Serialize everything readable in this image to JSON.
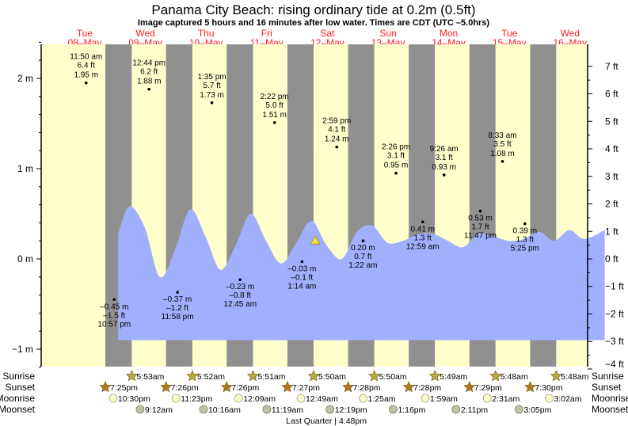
{
  "chart_data": {
    "type": "area",
    "title": "Panama City Beach: rising  ordinary tide at 0.2m (0.5ft)",
    "subtitle": "Image captured 5 hours and 16 minutes after low water. Times are CDT (UTC –5.0hrs)",
    "days": [
      {
        "dow": "Tue",
        "date": "08–May"
      },
      {
        "dow": "Wed",
        "date": "09–May"
      },
      {
        "dow": "Thu",
        "date": "10–May"
      },
      {
        "dow": "Fri",
        "date": "11–May"
      },
      {
        "dow": "Sat",
        "date": "12–May"
      },
      {
        "dow": "Sun",
        "date": "13–May"
      },
      {
        "dow": "Mon",
        "date": "14–May"
      },
      {
        "dow": "Tue",
        "date": "15–May"
      },
      {
        "dow": "Wed",
        "date": "16–May"
      }
    ],
    "y_left": {
      "unit": "m",
      "ylim": [
        -1.2,
        2.4
      ],
      "ticks": [
        {
          "v": 2,
          "label": "2 m"
        },
        {
          "v": 1,
          "label": "1 m"
        },
        {
          "v": 0,
          "label": "0 m"
        },
        {
          "v": -1,
          "label": "−1 m"
        }
      ]
    },
    "y_right": {
      "unit": "ft",
      "ticks": [
        {
          "v": 7,
          "label": "7 ft"
        },
        {
          "v": 6,
          "label": "6 ft"
        },
        {
          "v": 5,
          "label": "5 ft"
        },
        {
          "v": 4,
          "label": "4 ft"
        },
        {
          "v": 3,
          "label": "3 ft"
        },
        {
          "v": 2,
          "label": "2 ft"
        },
        {
          "v": 1,
          "label": "1 ft"
        },
        {
          "v": 0,
          "label": "0 ft"
        },
        {
          "v": -1,
          "label": "−1 ft"
        },
        {
          "v": -2,
          "label": "−2 ft"
        },
        {
          "v": -3,
          "label": "−3 ft"
        },
        {
          "v": -4,
          "label": "−4 ft"
        }
      ]
    },
    "tide_curve": {
      "hours_from_start": [
        24.5,
        29,
        35,
        41,
        47,
        53,
        59,
        65,
        71,
        77,
        83,
        89,
        95,
        101,
        107,
        113,
        119,
        125,
        131,
        137,
        143,
        149,
        155,
        161,
        167,
        173,
        179,
        185,
        191,
        197,
        203,
        209,
        217
      ],
      "m": [
        0.28,
        0.58,
        0.35,
        -0.2,
        0.1,
        0.55,
        0.25,
        -0.12,
        0.15,
        0.5,
        0.2,
        -0.05,
        0.18,
        0.42,
        0.15,
        0.0,
        0.3,
        0.37,
        0.18,
        0.2,
        0.27,
        0.28,
        0.2,
        0.13,
        0.28,
        0.25,
        0.2,
        0.22,
        0.3,
        0.2,
        0.32,
        0.22,
        0.32
      ],
      "fill_floor_m": -0.9,
      "color": "#a0b0ff"
    },
    "extremes": [
      {
        "type": "high",
        "day": 0,
        "hour": 11.83,
        "m": 1.95,
        "time": "11:50 am",
        "ft_label": "6.4 ft",
        "m_label": "1.95 m"
      },
      {
        "type": "high",
        "day": 1,
        "hour": 12.73,
        "m": 1.88,
        "time": "12:44 pm",
        "ft_label": "6.2 ft",
        "m_label": "1.88 m"
      },
      {
        "type": "high",
        "day": 2,
        "hour": 13.58,
        "m": 1.73,
        "time": "1:35 pm",
        "ft_label": "5.7 ft",
        "m_label": "1.73 m"
      },
      {
        "type": "high",
        "day": 3,
        "hour": 14.37,
        "m": 1.51,
        "time": "2:22 pm",
        "ft_label": "5.0 ft",
        "m_label": "1.51 m"
      },
      {
        "type": "high",
        "day": 4,
        "hour": 14.98,
        "m": 1.24,
        "time": "2:59 pm",
        "ft_label": "4.1 ft",
        "m_label": "1.24 m"
      },
      {
        "type": "high",
        "day": 5,
        "hour": 14.43,
        "m": 0.95,
        "time": "2:26 pm",
        "ft_label": "3.1 ft",
        "m_label": "0.95 m"
      },
      {
        "type": "high",
        "day": 6,
        "hour": 9.43,
        "m": 0.93,
        "time": "9:26 am",
        "ft_label": "3.1 ft",
        "m_label": "0.93 m"
      },
      {
        "type": "high",
        "day": 7,
        "hour": 8.55,
        "m": 1.08,
        "time": "8:33 am",
        "ft_label": "3.5 ft",
        "m_label": "1.08 m"
      },
      {
        "type": "low",
        "day": 0,
        "hour": 22.95,
        "m": -0.45,
        "time": "10:57 pm",
        "ft_label": "–1.5 ft",
        "m_label": "–0.45 m"
      },
      {
        "type": "low",
        "day": 1,
        "hour": 23.97,
        "m": -0.37,
        "time": "11:58 pm",
        "ft_label": "–1.2 ft",
        "m_label": "–0.37 m"
      },
      {
        "type": "low",
        "day": 3,
        "hour": 0.75,
        "m": -0.23,
        "time": "12:45 am",
        "ft_label": "–0.8 ft",
        "m_label": "–0.23 m"
      },
      {
        "type": "low",
        "day": 4,
        "hour": 1.23,
        "m": -0.03,
        "time": "1:14 am",
        "ft_label": "–0.1 ft",
        "m_label": "–0.03 m"
      },
      {
        "type": "low",
        "day": 5,
        "hour": 1.37,
        "m": 0.2,
        "time": "1:22 am",
        "ft_label": "0.7 ft",
        "m_label": "0.20 m"
      },
      {
        "type": "low",
        "day": 6,
        "hour": 0.98,
        "m": 0.41,
        "time": "12:59 am",
        "ft_label": "1.3 ft",
        "m_label": "0.41 m"
      },
      {
        "type": "low",
        "day": 6,
        "hour": 23.78,
        "m": 0.53,
        "time": "11:47 pm",
        "ft_label": "1.7 ft",
        "m_label": "0.53 m"
      },
      {
        "type": "low",
        "day": 7,
        "hour": 17.42,
        "m": 0.39,
        "time": "5:25 pm",
        "ft_label": "1.3 ft",
        "m_label": "0.39 m"
      }
    ],
    "current": {
      "day": 4,
      "hour": 6.5,
      "m": 0.2
    },
    "night_bands": [
      {
        "start_day": 0,
        "start_hour": 19.42,
        "end_hour": 29.88
      },
      {
        "start_day": 1,
        "start_hour": 19.43,
        "end_hour": 29.87
      },
      {
        "start_day": 2,
        "start_hour": 19.43,
        "end_hour": 29.85
      },
      {
        "start_day": 3,
        "start_hour": 19.45,
        "end_hour": 29.83
      },
      {
        "start_day": 4,
        "start_hour": 19.47,
        "end_hour": 29.83
      },
      {
        "start_day": 5,
        "start_hour": 19.47,
        "end_hour": 29.82
      },
      {
        "start_day": 6,
        "start_hour": 19.48,
        "end_hour": 29.8
      },
      {
        "start_day": 7,
        "start_hour": 19.5,
        "end_hour": 29.8
      }
    ],
    "colors": {
      "day": "#ffffcc",
      "night": "#909090",
      "water": "#a0b0ff",
      "day_label": "#ff2020",
      "sunrise": "#b0b040",
      "sunset": "#b07820",
      "moonrise": "#ffffc8",
      "moonset": "#c0c0a8"
    }
  },
  "rows": {
    "sunrise_label": "Sunrise",
    "sunset_label": "Sunset",
    "moonrise_label": "Moonrise",
    "moonset_label": "Moonset",
    "sunrise": [
      {
        "day": 1,
        "hour": 5.88,
        "time": "5:53am"
      },
      {
        "day": 2,
        "hour": 5.87,
        "time": "5:52am"
      },
      {
        "day": 3,
        "hour": 5.85,
        "time": "5:51am"
      },
      {
        "day": 4,
        "hour": 5.83,
        "time": "5:50am"
      },
      {
        "day": 5,
        "hour": 5.83,
        "time": "5:50am"
      },
      {
        "day": 6,
        "hour": 5.82,
        "time": "5:49am"
      },
      {
        "day": 7,
        "hour": 5.8,
        "time": "5:48am"
      },
      {
        "day": 8,
        "hour": 5.8,
        "time": "5:48am"
      }
    ],
    "sunset": [
      {
        "day": 0,
        "hour": 19.42,
        "time": "7:25pm"
      },
      {
        "day": 1,
        "hour": 19.43,
        "time": "7:26pm"
      },
      {
        "day": 2,
        "hour": 19.43,
        "time": "7:26pm"
      },
      {
        "day": 3,
        "hour": 19.45,
        "time": "7:27pm"
      },
      {
        "day": 4,
        "hour": 19.47,
        "time": "7:28pm"
      },
      {
        "day": 5,
        "hour": 19.47,
        "time": "7:28pm"
      },
      {
        "day": 6,
        "hour": 19.48,
        "time": "7:29pm"
      },
      {
        "day": 7,
        "hour": 19.5,
        "time": "7:30pm"
      }
    ],
    "moonrise": [
      {
        "day": 0,
        "hour": 22.5,
        "time": "10:30pm"
      },
      {
        "day": 1,
        "hour": 23.38,
        "time": "11:23pm"
      },
      {
        "day": 3,
        "hour": 0.15,
        "time": "12:09am"
      },
      {
        "day": 4,
        "hour": 0.82,
        "time": "12:49am"
      },
      {
        "day": 5,
        "hour": 1.42,
        "time": "1:25am"
      },
      {
        "day": 6,
        "hour": 1.98,
        "time": "1:59am"
      },
      {
        "day": 7,
        "hour": 2.52,
        "time": "2:31am"
      },
      {
        "day": 8,
        "hour": 3.03,
        "time": "3:02am"
      }
    ],
    "moonset": [
      {
        "day": 1,
        "hour": 9.2,
        "time": "9:12am"
      },
      {
        "day": 2,
        "hour": 10.27,
        "time": "10:16am"
      },
      {
        "day": 3,
        "hour": 11.32,
        "time": "11:19am"
      },
      {
        "day": 4,
        "hour": 12.32,
        "time": "12:19pm"
      },
      {
        "day": 5,
        "hour": 13.27,
        "time": "1:16pm"
      },
      {
        "day": 6,
        "hour": 14.18,
        "time": "2:11pm"
      },
      {
        "day": 7,
        "hour": 15.08,
        "time": "3:05pm"
      }
    ],
    "moon_phase": "Last Quarter | 4:48pm"
  }
}
